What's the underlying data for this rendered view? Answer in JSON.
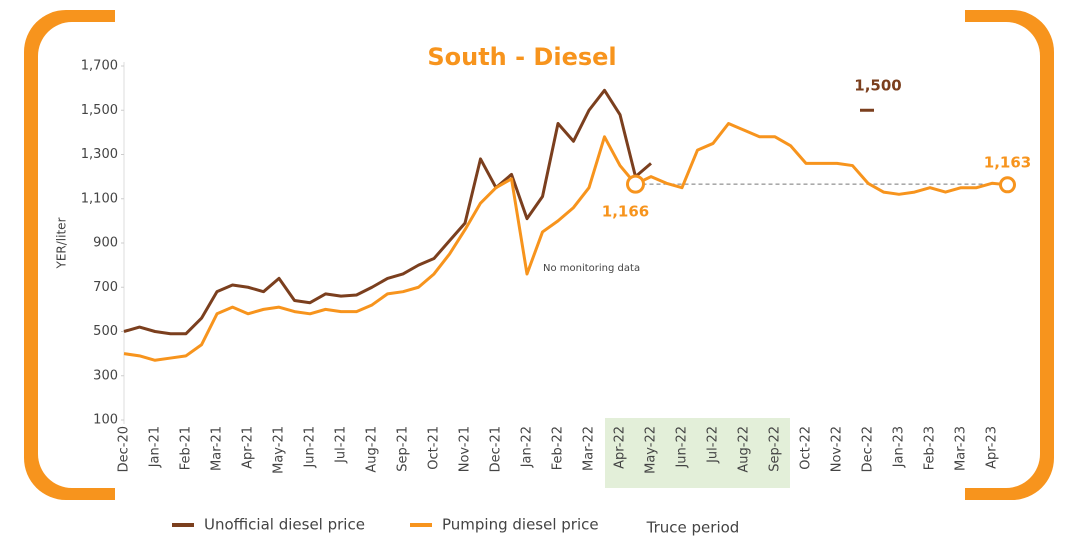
{
  "chart_data": {
    "type": "line",
    "title": "South - Diesel",
    "y_label": "YER/liter",
    "categories": [
      "Dec-20",
      null,
      "Jan-21",
      null,
      "Feb-21",
      null,
      "Mar-21",
      null,
      "Apr-21",
      null,
      "May-21",
      null,
      "Jun-21",
      null,
      "Jul-21",
      null,
      "Aug-21",
      null,
      "Sep-21",
      null,
      "Oct-21",
      null,
      "Nov-21",
      null,
      "Dec-21",
      null,
      "Jan-22",
      null,
      "Feb-22",
      null,
      "Mar-22",
      null,
      "Apr-22",
      null,
      "May-22",
      null,
      "Jun-22",
      null,
      "Jul-22",
      null,
      "Aug-22",
      null,
      "Sep-22",
      null,
      "Oct-22",
      null,
      "Nov-22",
      null,
      "Dec-22",
      null,
      "Jan-23",
      null,
      "Feb-23",
      null,
      "Mar-23",
      null,
      "Apr-23",
      null
    ],
    "series": [
      {
        "name": "Unofficial diesel price",
        "color": "#7b3f1e",
        "values": [
          500,
          520,
          500,
          490,
          490,
          560,
          680,
          710,
          700,
          680,
          740,
          640,
          630,
          670,
          660,
          665,
          700,
          740,
          760,
          800,
          830,
          910,
          990,
          1280,
          1150,
          1210,
          1010,
          1110,
          1440,
          1360,
          1500,
          1590,
          1480,
          1200,
          1260,
          null,
          null,
          null,
          null,
          null,
          null,
          null,
          null,
          null,
          null,
          null,
          null,
          null,
          null,
          null,
          null,
          null,
          null,
          null,
          null,
          null,
          null,
          null
        ]
      },
      {
        "name": "Pumping diesel price",
        "color": "#f7941d",
        "values": [
          400,
          390,
          370,
          380,
          390,
          440,
          580,
          610,
          580,
          600,
          610,
          590,
          580,
          600,
          590,
          590,
          620,
          670,
          680,
          700,
          760,
          850,
          960,
          1080,
          1150,
          1190,
          760,
          950,
          1000,
          1060,
          1150,
          1380,
          1250,
          1166,
          1200,
          1170,
          1150,
          1320,
          1350,
          1440,
          1410,
          1380,
          1380,
          1340,
          1260,
          1260,
          1260,
          1250,
          1170,
          1130,
          1120,
          1130,
          1150,
          1130,
          1150,
          1150,
          1170,
          1163
        ]
      }
    ],
    "ylim": [
      100,
      1700
    ],
    "yticks": [
      100,
      300,
      500,
      700,
      900,
      {
        "value": 1100,
        "label": "1,100"
      },
      {
        "value": 1300,
        "label": "1,300"
      },
      {
        "value": 1500,
        "label": "1,500"
      },
      {
        "value": 1700,
        "label": "1,700"
      }
    ],
    "grid": false,
    "shaded": {
      "label": "Truce period",
      "from": "Apr-22",
      "to": "Sep-22"
    },
    "annotations": [
      {
        "value": 1166,
        "label": "1,166"
      },
      {
        "value": 1163,
        "label": "1,163"
      },
      {
        "value": 1500,
        "label": "1,500"
      }
    ],
    "note": "No monitoring data"
  }
}
